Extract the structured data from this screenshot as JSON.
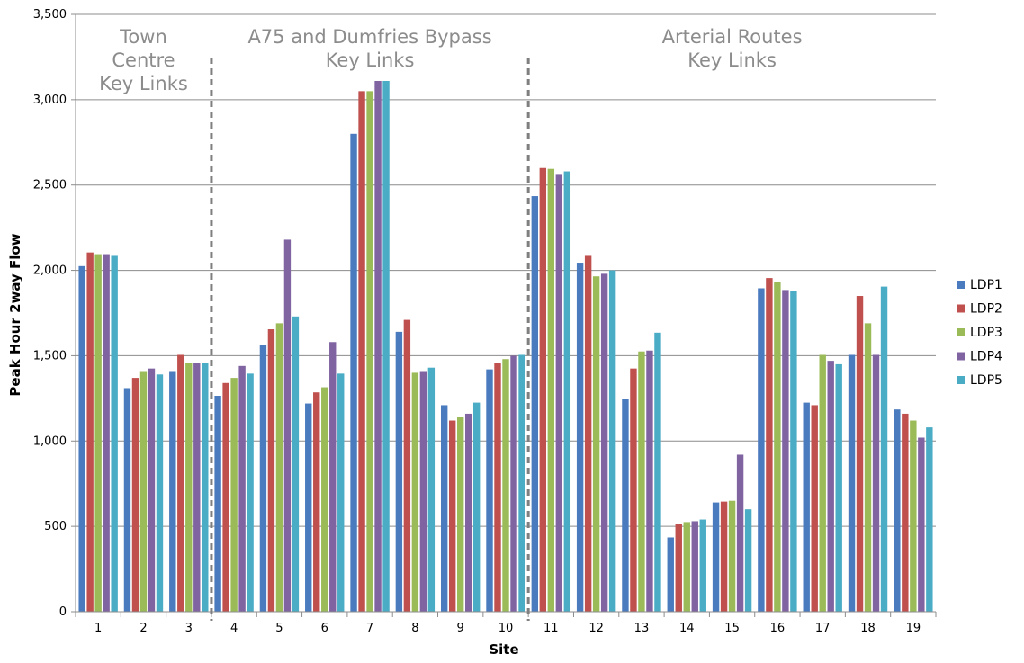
{
  "chart_data": {
    "type": "bar",
    "title": "",
    "xlabel": "Site",
    "ylabel": "Peak Hour 2way Flow",
    "ylim": [
      0,
      3500
    ],
    "yticks": [
      0,
      500,
      1000,
      1500,
      2000,
      2500,
      3000,
      3500
    ],
    "ytick_labels": [
      "0",
      "500",
      "1,000",
      "1,500",
      "2,000",
      "2,500",
      "3,000",
      "3,500"
    ],
    "grid": true,
    "legend_position": "right",
    "categories": [
      "1",
      "2",
      "3",
      "4",
      "5",
      "6",
      "7",
      "8",
      "9",
      "10",
      "11",
      "12",
      "13",
      "14",
      "15",
      "16",
      "17",
      "18",
      "19"
    ],
    "series": [
      {
        "name": "LDP1",
        "color": "#4a7bbf",
        "values": [
          2025,
          1310,
          1410,
          1265,
          1565,
          1220,
          2800,
          1640,
          1210,
          1420,
          2435,
          2045,
          1245,
          435,
          640,
          1895,
          1225,
          1505,
          1185
        ]
      },
      {
        "name": "LDP2",
        "color": "#c0504d",
        "values": [
          2105,
          1370,
          1505,
          1340,
          1655,
          1285,
          3050,
          1710,
          1120,
          1455,
          2600,
          2085,
          1425,
          515,
          645,
          1955,
          1210,
          1850,
          1160
        ]
      },
      {
        "name": "LDP3",
        "color": "#9bbb59",
        "values": [
          2095,
          1410,
          1455,
          1370,
          1690,
          1315,
          3050,
          1400,
          1140,
          1480,
          2595,
          1965,
          1525,
          525,
          650,
          1930,
          1505,
          1690,
          1120
        ]
      },
      {
        "name": "LDP4",
        "color": "#8064a2",
        "values": [
          2095,
          1425,
          1460,
          1440,
          2180,
          1580,
          3110,
          1410,
          1160,
          1500,
          2565,
          1980,
          1530,
          530,
          920,
          1885,
          1470,
          1505,
          1020
        ]
      },
      {
        "name": "LDP5",
        "color": "#4bacc6",
        "values": [
          2085,
          1390,
          1460,
          1395,
          1730,
          1395,
          3110,
          1430,
          1225,
          1505,
          2580,
          2000,
          1635,
          540,
          600,
          1880,
          1450,
          1905,
          1080
        ]
      }
    ],
    "regions": [
      {
        "label_lines": [
          "Town",
          "Centre",
          "Key Links"
        ],
        "sites": [
          "1",
          "3"
        ]
      },
      {
        "label_lines": [
          "A75 and Dumfries Bypass",
          "Key Links"
        ],
        "sites": [
          "4",
          "10"
        ]
      },
      {
        "label_lines": [
          "Arterial Routes",
          "Key Links"
        ],
        "sites": [
          "11",
          "19"
        ]
      }
    ]
  }
}
